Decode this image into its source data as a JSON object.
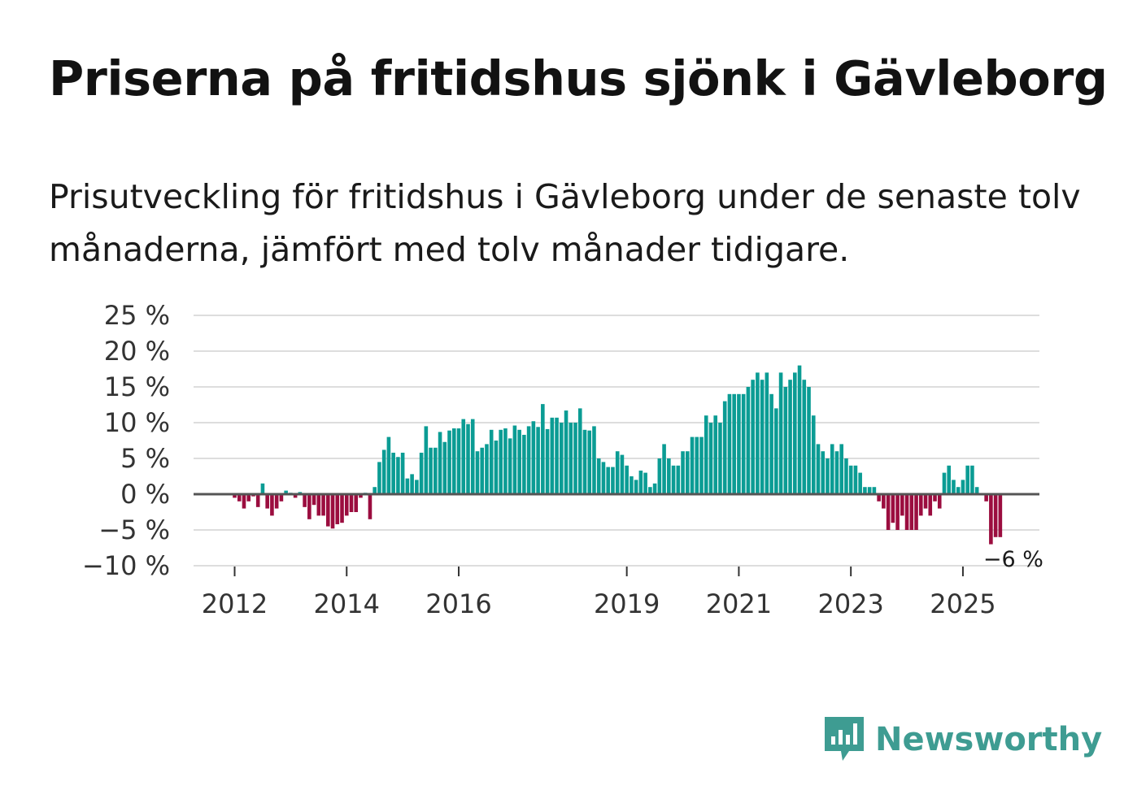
{
  "title": "Priserna på fritidshus sjönk i Gävleborg",
  "subtitle": "Prisutveckling för fritidshus i Gävleborg under de senaste tolv månaderna, jämfört med tolv månader tidigare.",
  "brand": {
    "name": "Newsworthy",
    "icon": "newsworthy-logo-icon"
  },
  "colors": {
    "positive": "#0b9c94",
    "negative": "#9b0d3f",
    "gridline": "#dddddd",
    "zeroline": "#555555",
    "brand": "#3e9c92"
  },
  "chart_data": {
    "type": "bar",
    "title": "Priserna på fritidshus sjönk i Gävleborg",
    "ylabel": "",
    "xlabel": "",
    "ylim": [
      -10,
      25
    ],
    "yticks": [
      25,
      20,
      15,
      10,
      5,
      0,
      -5,
      -10
    ],
    "ytick_labels": [
      "25 %",
      "20 %",
      "15 %",
      "10 %",
      "5 %",
      "0 %",
      "−5 %",
      "−10 %"
    ],
    "xticks": [
      {
        "label": "2012",
        "index": 0
      },
      {
        "label": "2014",
        "index": 24
      },
      {
        "label": "2016",
        "index": 48
      },
      {
        "label": "2019",
        "index": 84
      },
      {
        "label": "2021",
        "index": 108
      },
      {
        "label": "2023",
        "index": 132
      },
      {
        "label": "2025",
        "index": 156
      }
    ],
    "start": "2012-01",
    "frequency": "monthly",
    "values": [
      -0.5,
      -1,
      -2,
      -1,
      -0.3,
      -1.8,
      1.5,
      -2,
      -3,
      -2,
      -1,
      0.5,
      0.2,
      -0.5,
      0.3,
      -1.8,
      -3.5,
      -1.5,
      -3,
      -3,
      -4.5,
      -4.8,
      -4.2,
      -4,
      -3,
      -2.5,
      -2.5,
      -0.5,
      0.2,
      -3.5,
      1,
      4.5,
      6.2,
      8,
      5.8,
      5.2,
      5.8,
      2.2,
      2.8,
      2,
      5.8,
      9.5,
      6.5,
      6.5,
      8.7,
      7.3,
      8.9,
      9.2,
      9.2,
      10.5,
      9.8,
      10.5,
      6,
      6.5,
      7,
      9,
      7.5,
      9,
      9.2,
      7.8,
      9.6,
      9,
      8.3,
      9.5,
      10.2,
      9.4,
      12.6,
      9.1,
      10.7,
      10.7,
      10,
      11.7,
      10,
      10,
      12,
      9,
      8.9,
      9.5,
      5,
      4.5,
      3.8,
      3.8,
      6,
      5.5,
      4,
      2.5,
      2,
      3.3,
      3,
      1,
      1.5,
      5,
      7,
      5,
      4,
      4,
      6,
      6,
      8,
      8,
      8,
      11,
      10,
      11,
      10,
      13,
      14,
      14,
      14,
      14,
      15,
      16,
      17,
      16,
      17,
      14,
      12,
      17,
      15,
      16,
      17,
      18,
      16,
      15,
      11,
      7,
      6,
      5,
      7,
      6,
      7,
      5,
      4,
      4,
      3,
      1,
      1,
      1,
      -1,
      -2,
      -5,
      -4,
      -5,
      -3,
      -5,
      -5,
      -5,
      -3,
      -2,
      -3,
      -1,
      -2,
      3,
      4,
      2,
      1,
      2,
      4,
      4,
      1,
      0,
      -1,
      -7,
      -6,
      -6
    ],
    "annotations": [
      {
        "text": "−6 %",
        "index": 164,
        "value": -6
      }
    ]
  }
}
